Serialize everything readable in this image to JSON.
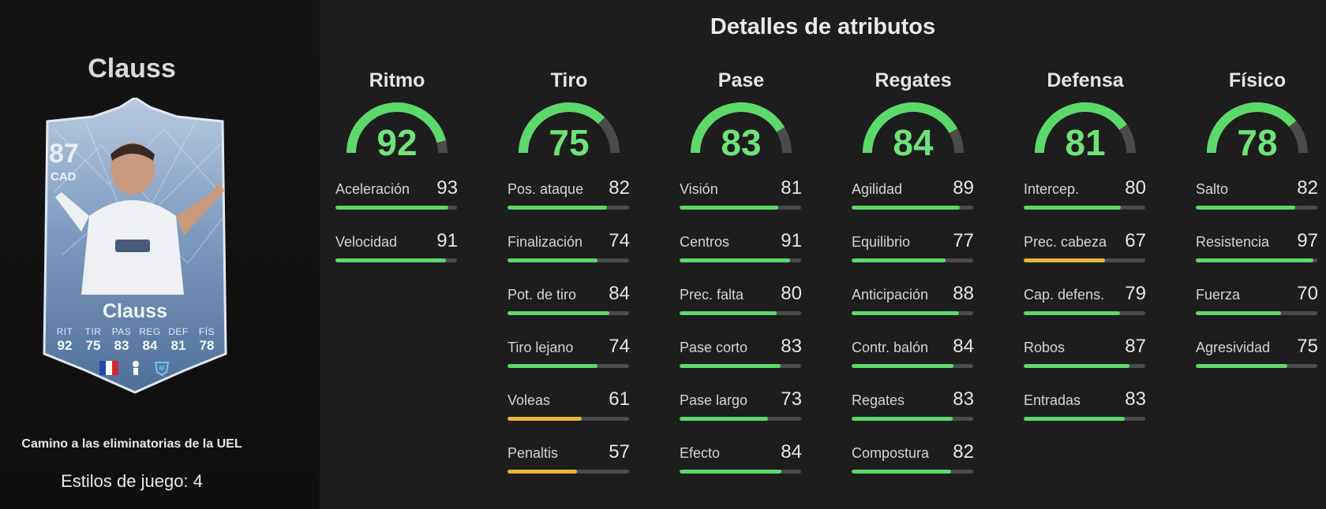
{
  "player": {
    "name": "Clauss",
    "card_name": "Clauss",
    "rating": "87",
    "position": "CAD",
    "promo": "Camino a las eliminatorias de la UEL",
    "playstyles": "Estilos de juego: 4",
    "badges": [
      "flag-france-icon",
      "league-ligue1-icon",
      "club-marseille-icon"
    ],
    "face_stats": [
      {
        "label": "RIT",
        "value": "92"
      },
      {
        "label": "TIR",
        "value": "75"
      },
      {
        "label": "PAS",
        "value": "83"
      },
      {
        "label": "REG",
        "value": "84"
      },
      {
        "label": "DEF",
        "value": "81"
      },
      {
        "label": "FÍS",
        "value": "78"
      }
    ]
  },
  "section_title": "Detalles de atributos",
  "colors": {
    "high": "#5cd96a",
    "mid": "#e8b53a",
    "track": "#4a4b4a",
    "gauge_value": "#6ee379"
  },
  "categories": [
    {
      "name": "Ritmo",
      "value": "92",
      "attributes": [
        {
          "name": "Aceleración",
          "value": "93"
        },
        {
          "name": "Velocidad",
          "value": "91"
        }
      ]
    },
    {
      "name": "Tiro",
      "value": "75",
      "attributes": [
        {
          "name": "Pos. ataque",
          "value": "82"
        },
        {
          "name": "Finalización",
          "value": "74"
        },
        {
          "name": "Pot. de tiro",
          "value": "84"
        },
        {
          "name": "Tiro lejano",
          "value": "74"
        },
        {
          "name": "Voleas",
          "value": "61"
        },
        {
          "name": "Penaltis",
          "value": "57"
        }
      ]
    },
    {
      "name": "Pase",
      "value": "83",
      "attributes": [
        {
          "name": "Visión",
          "value": "81"
        },
        {
          "name": "Centros",
          "value": "91"
        },
        {
          "name": "Prec. falta",
          "value": "80"
        },
        {
          "name": "Pase corto",
          "value": "83"
        },
        {
          "name": "Pase largo",
          "value": "73"
        },
        {
          "name": "Efecto",
          "value": "84"
        }
      ]
    },
    {
      "name": "Regates",
      "value": "84",
      "attributes": [
        {
          "name": "Agilidad",
          "value": "89"
        },
        {
          "name": "Equilibrio",
          "value": "77"
        },
        {
          "name": "Anticipación",
          "value": "88"
        },
        {
          "name": "Contr. balón",
          "value": "84"
        },
        {
          "name": "Regates",
          "value": "83"
        },
        {
          "name": "Compostura",
          "value": "82"
        }
      ]
    },
    {
      "name": "Defensa",
      "value": "81",
      "attributes": [
        {
          "name": "Intercep.",
          "value": "80"
        },
        {
          "name": "Prec. cabeza",
          "value": "67"
        },
        {
          "name": "Cap. defens.",
          "value": "79"
        },
        {
          "name": "Robos",
          "value": "87"
        },
        {
          "name": "Entradas",
          "value": "83"
        }
      ]
    },
    {
      "name": "Físico",
      "value": "78",
      "attributes": [
        {
          "name": "Salto",
          "value": "82"
        },
        {
          "name": "Resistencia",
          "value": "97"
        },
        {
          "name": "Fuerza",
          "value": "70"
        },
        {
          "name": "Agresividad",
          "value": "75"
        }
      ]
    }
  ]
}
